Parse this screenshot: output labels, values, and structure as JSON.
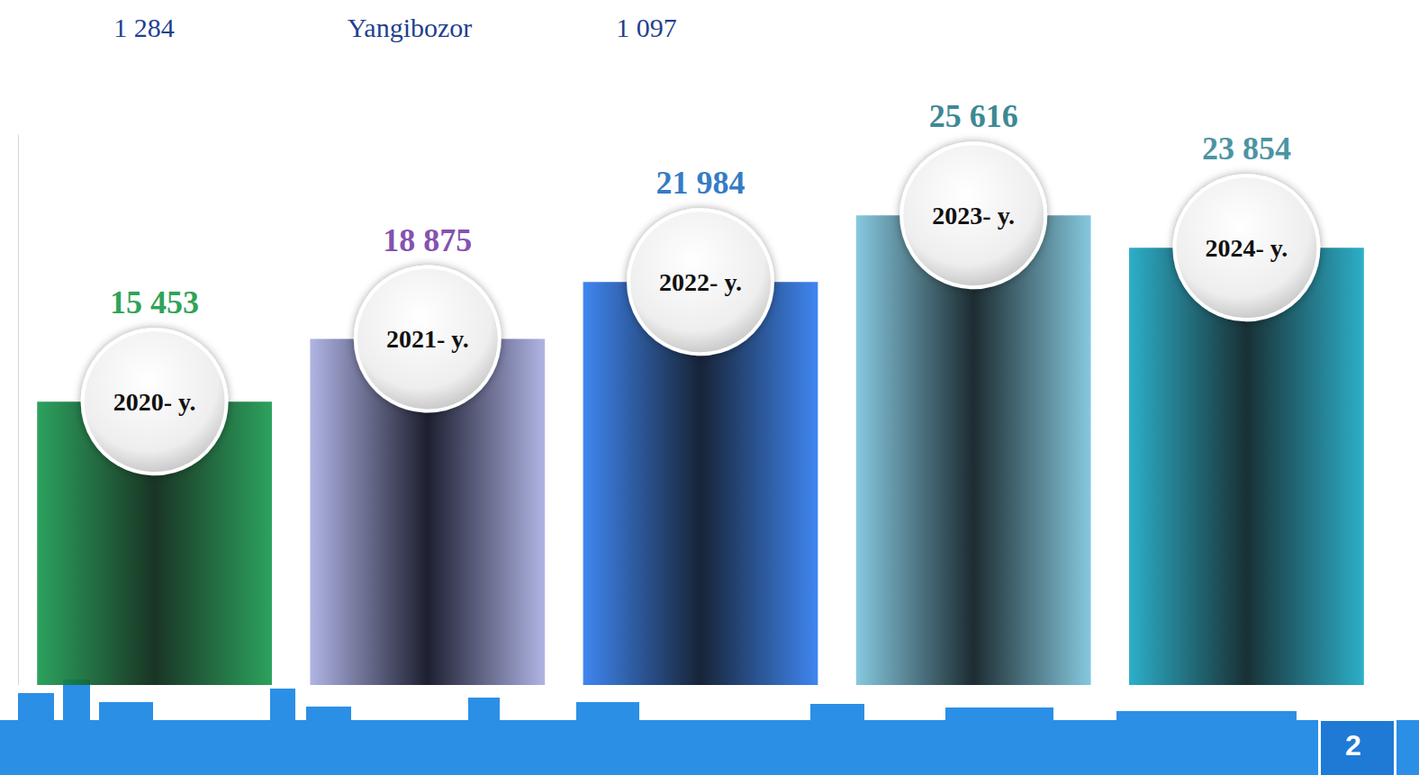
{
  "chart_data": {
    "type": "bar",
    "categories": [
      "2020- y.",
      "2021- y.",
      "2022- y.",
      "2023- y.",
      "2024- y."
    ],
    "values": [
      15453,
      18875,
      21984,
      25616,
      23854
    ],
    "value_labels": [
      "15 453",
      "18 875",
      "21 984",
      "25 616",
      "23 854"
    ],
    "colors": [
      "#1a9a50",
      "#a9aee2",
      "#2f7cf0",
      "#7cc4dc",
      "#1aa8c4"
    ],
    "ylim": [
      0,
      30000
    ],
    "data_labels": true,
    "tick_labels": false,
    "grid": false,
    "annotations": [
      "1 284",
      "Yangibozor",
      "1 097",
      "2"
    ]
  }
}
